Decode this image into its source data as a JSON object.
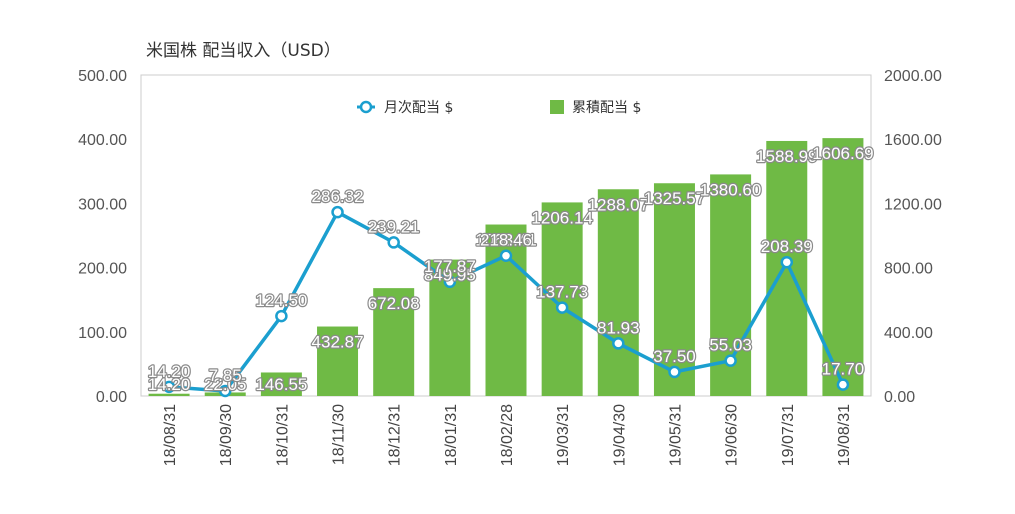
{
  "chart_data": {
    "type": "bar+line",
    "title": "米国株 配当収入（USD）",
    "categories": [
      "18/08/31",
      "18/09/30",
      "18/10/31",
      "18/11/30",
      "18/12/31",
      "18/01/31",
      "18/02/28",
      "19/03/31",
      "19/04/30",
      "19/05/31",
      "19/06/30",
      "19/07/31",
      "19/08/31"
    ],
    "series": [
      {
        "name": "月次配当 $",
        "type": "line",
        "axis": "left",
        "color": "#1b9fcf",
        "values": [
          14.2,
          7.85,
          124.5,
          286.32,
          239.21,
          177.87,
          218.46,
          137.73,
          81.93,
          37.5,
          55.03,
          208.39,
          17.7
        ],
        "labels": [
          "14.20",
          "7.85",
          "124.50",
          "286.32",
          "239.21",
          "177.87",
          "218.46",
          "137.73",
          "81.93",
          "37.50",
          "55.03",
          "208.39",
          "17.70"
        ]
      },
      {
        "name": "累積配当 $",
        "type": "bar",
        "axis": "right",
        "color": "#6fba45",
        "values": [
          14.2,
          22.05,
          146.55,
          432.87,
          672.08,
          849.95,
          1068.41,
          1206.14,
          1288.07,
          1325.57,
          1380.6,
          1588.99,
          1606.69
        ],
        "labels": [
          "14.20",
          "22.05",
          "146.55",
          "432.87",
          "672.08",
          "849.95",
          "1068.41",
          "1206.14",
          "1288.07",
          "1325.57",
          "1380.60",
          "1588.99",
          "1606.69"
        ]
      }
    ],
    "y_left": {
      "ylim": [
        0,
        500
      ],
      "ticks": [
        "0.00",
        "100.00",
        "200.00",
        "300.00",
        "400.00",
        "500.00"
      ]
    },
    "y_right": {
      "ylim": [
        0,
        2000
      ],
      "ticks": [
        "0.00",
        "400.00",
        "800.00",
        "1200.00",
        "1600.00",
        "2000.00"
      ]
    },
    "legend_position": "top",
    "grid": false
  }
}
